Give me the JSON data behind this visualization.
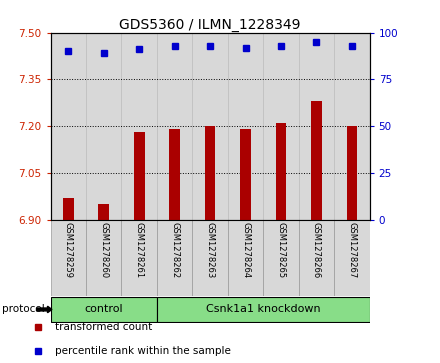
{
  "title": "GDS5360 / ILMN_1228349",
  "samples": [
    "GSM1278259",
    "GSM1278260",
    "GSM1278261",
    "GSM1278262",
    "GSM1278263",
    "GSM1278264",
    "GSM1278265",
    "GSM1278266",
    "GSM1278267"
  ],
  "bar_values": [
    6.97,
    6.95,
    7.18,
    7.19,
    7.2,
    7.19,
    7.21,
    7.28,
    7.2
  ],
  "percentile_values": [
    90,
    89,
    91,
    93,
    93,
    92,
    93,
    95,
    93
  ],
  "ylim_left": [
    6.9,
    7.5
  ],
  "ylim_right": [
    0,
    100
  ],
  "yticks_left": [
    6.9,
    7.05,
    7.2,
    7.35,
    7.5
  ],
  "yticks_right": [
    0,
    25,
    50,
    75,
    100
  ],
  "bar_color": "#aa0000",
  "dot_color": "#0000cc",
  "bar_bottom": 6.9,
  "groups": [
    {
      "label": "control",
      "start": 0,
      "end": 3
    },
    {
      "label": "Csnk1a1 knockdown",
      "start": 3,
      "end": 9
    }
  ],
  "group_color": "#88dd88",
  "protocol_label": "protocol",
  "legend_items": [
    {
      "label": "transformed count",
      "color": "#aa0000"
    },
    {
      "label": "percentile rank within the sample",
      "color": "#0000cc"
    }
  ],
  "sample_box_color": "#d8d8d8",
  "plot_bg_color": "#ffffff",
  "tick_label_color_left": "#cc2200",
  "tick_label_color_right": "#0000cc",
  "title_fontsize": 10,
  "tick_fontsize": 7.5,
  "sample_fontsize": 6.0,
  "legend_fontsize": 7.5,
  "group_fontsize": 8
}
